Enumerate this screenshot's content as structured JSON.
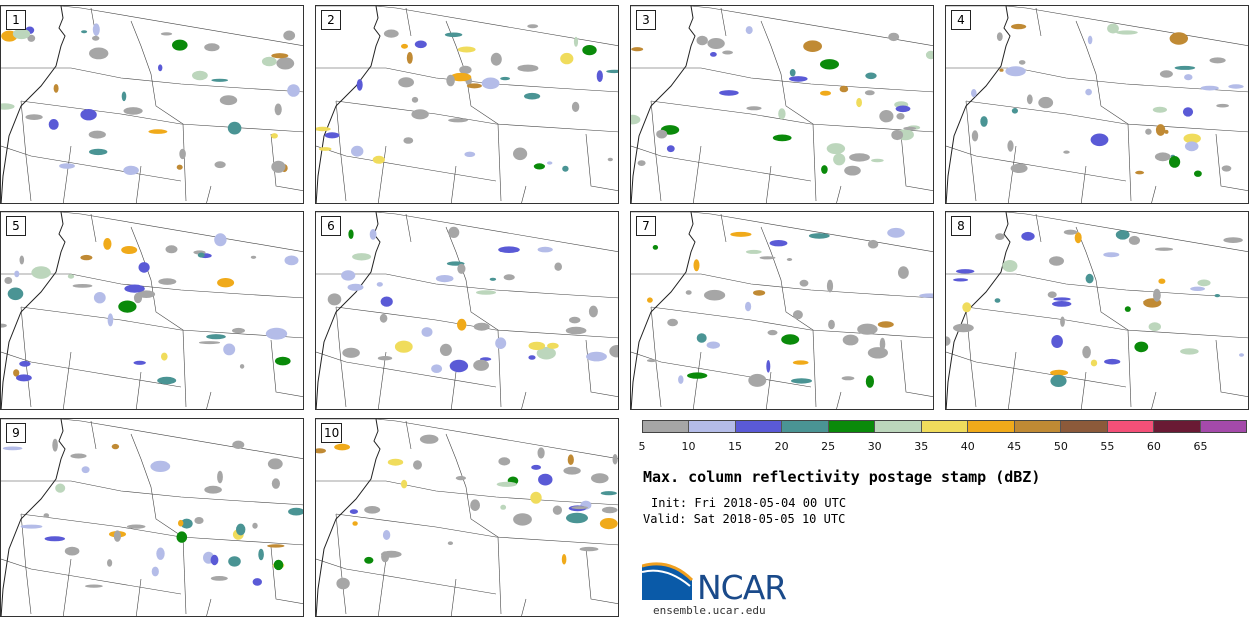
{
  "panels": [
    {
      "label": "1"
    },
    {
      "label": "2"
    },
    {
      "label": "3"
    },
    {
      "label": "4"
    },
    {
      "label": "5"
    },
    {
      "label": "6"
    },
    {
      "label": "7"
    },
    {
      "label": "8"
    },
    {
      "label": "9"
    },
    {
      "label": "10"
    }
  ],
  "colorbar": {
    "ticks": [
      "5",
      "10",
      "15",
      "20",
      "25",
      "30",
      "35",
      "40",
      "45",
      "50",
      "55",
      "60",
      "65"
    ],
    "colors": [
      "#a6a6a6",
      "#b4bce8",
      "#5a5ad6",
      "#4a9494",
      "#0a8a0a",
      "#bcd6bc",
      "#f0dc5c",
      "#f0aa1a",
      "#c08a34",
      "#8c5a3a",
      "#f45078",
      "#6a1a34",
      "#a44aaa"
    ]
  },
  "title": "Max. column reflectivity postage stamp (dBZ)",
  "init": "Init: Fri 2018-05-04 00 UTC",
  "valid": "Valid: Sat 2018-05-05 10 UTC",
  "logo": {
    "text": "NCAR",
    "site": "ensemble.ucar.edu"
  }
}
